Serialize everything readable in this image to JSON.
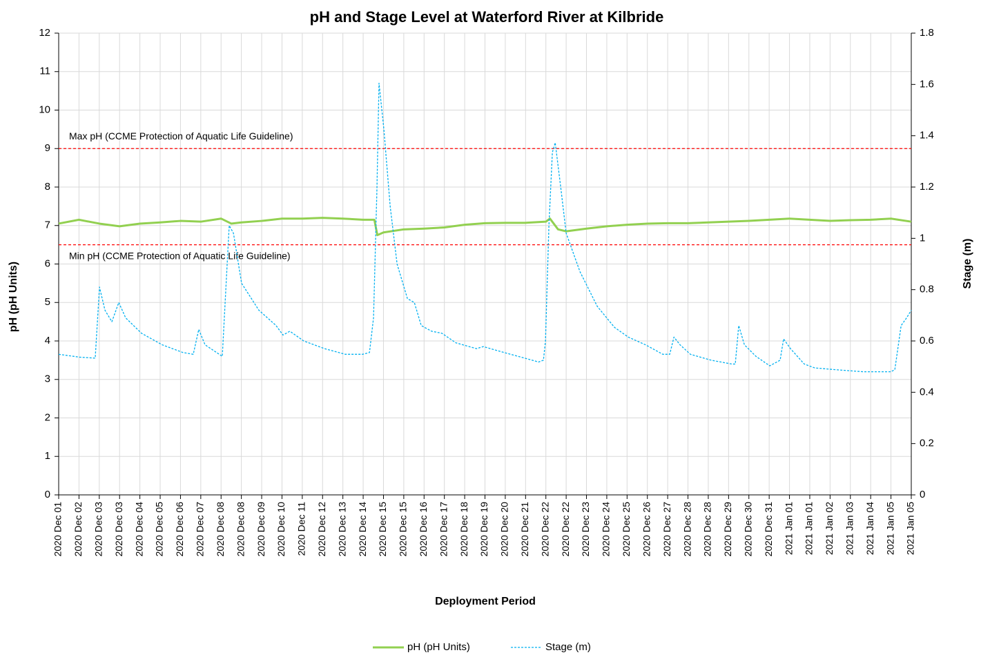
{
  "chart_data": {
    "type": "line",
    "title": "pH and Stage Level at Waterford River at Kilbride",
    "x_label": "Deployment Period",
    "y_label": "pH (pH Units)",
    "y2_label": "Stage (m)",
    "xlim": [
      0,
      42
    ],
    "xticks": [
      {
        "value": 0,
        "label": "2020 Dec 01"
      },
      {
        "value": 1,
        "label": "2020 Dec 02"
      },
      {
        "value": 2,
        "label": "2020 Dec 03"
      },
      {
        "value": 3,
        "label": "2020 Dec 03"
      },
      {
        "value": 4,
        "label": "2020 Dec 04"
      },
      {
        "value": 5,
        "label": "2020 Dec 05"
      },
      {
        "value": 6,
        "label": "2020 Dec 06"
      },
      {
        "value": 7,
        "label": "2020 Dec 07"
      },
      {
        "value": 8,
        "label": "2020 Dec 08"
      },
      {
        "value": 9,
        "label": "2020 Dec 08"
      },
      {
        "value": 10,
        "label": "2020 Dec 09"
      },
      {
        "value": 11,
        "label": "2020 Dec 10"
      },
      {
        "value": 12,
        "label": "2020 Dec 11"
      },
      {
        "value": 13,
        "label": "2020 Dec 12"
      },
      {
        "value": 14,
        "label": "2020 Dec 13"
      },
      {
        "value": 15,
        "label": "2020 Dec 14"
      },
      {
        "value": 16,
        "label": "2020 Dec 15"
      },
      {
        "value": 17,
        "label": "2020 Dec 15"
      },
      {
        "value": 18,
        "label": "2020 Dec 16"
      },
      {
        "value": 19,
        "label": "2020 Dec 17"
      },
      {
        "value": 20,
        "label": "2020 Dec 18"
      },
      {
        "value": 21,
        "label": "2020 Dec 19"
      },
      {
        "value": 22,
        "label": "2020 Dec 20"
      },
      {
        "value": 23,
        "label": "2020 Dec 21"
      },
      {
        "value": 24,
        "label": "2020 Dec 22"
      },
      {
        "value": 25,
        "label": "2020 Dec 22"
      },
      {
        "value": 26,
        "label": "2020 Dec 23"
      },
      {
        "value": 27,
        "label": "2020 Dec 24"
      },
      {
        "value": 28,
        "label": "2020 Dec 25"
      },
      {
        "value": 29,
        "label": "2020 Dec 26"
      },
      {
        "value": 30,
        "label": "2020 Dec 27"
      },
      {
        "value": 31,
        "label": "2020 Dec 28"
      },
      {
        "value": 32,
        "label": "2020 Dec 28"
      },
      {
        "value": 33,
        "label": "2020 Dec 29"
      },
      {
        "value": 34,
        "label": "2020 Dec 30"
      },
      {
        "value": 35,
        "label": "2020 Dec 31"
      },
      {
        "value": 36,
        "label": "2021 Jan 01"
      },
      {
        "value": 37,
        "label": "2021 Jan 01"
      },
      {
        "value": 38,
        "label": "2021 Jan 02"
      },
      {
        "value": 39,
        "label": "2021 Jan 03"
      },
      {
        "value": 40,
        "label": "2021 Jan 04"
      },
      {
        "value": 41,
        "label": "2021 Jan 05"
      },
      {
        "value": 42,
        "label": "2021 Jan 05"
      }
    ],
    "ylim": [
      0,
      12
    ],
    "yticks": [
      0,
      1,
      2,
      3,
      4,
      5,
      6,
      7,
      8,
      9,
      10,
      11,
      12
    ],
    "y2lim": [
      0,
      1.8
    ],
    "y2ticks": [
      0,
      0.2,
      0.4,
      0.6,
      0.8,
      1,
      1.2,
      1.4,
      1.6,
      1.8
    ],
    "grid": true,
    "annotations": [
      {
        "text": "Max pH (CCME  Protection of Aquatic Life Guideline)",
        "value": 9,
        "color": "#ff0000"
      },
      {
        "text": "Min pH (CCME  Protection of Aquatic Life Guideline)",
        "value": 6.5,
        "color": "#ff0000"
      }
    ],
    "series": [
      {
        "name": "pH (pH Units)",
        "color": "#92d050",
        "style": "solid",
        "x": [
          0,
          1,
          2,
          3,
          4,
          5,
          6,
          7,
          8,
          8.5,
          9,
          10,
          11,
          12,
          13,
          14,
          15,
          15.55,
          15.7,
          16,
          17,
          18,
          19,
          20,
          21,
          22,
          23,
          24,
          24.2,
          24.6,
          25,
          26,
          27,
          28,
          29,
          30,
          31,
          32,
          33,
          34,
          35,
          36,
          37,
          38,
          39,
          40,
          41,
          42
        ],
        "values": [
          7.05,
          7.15,
          7.05,
          6.98,
          7.05,
          7.08,
          7.12,
          7.1,
          7.18,
          7.05,
          7.08,
          7.12,
          7.18,
          7.18,
          7.2,
          7.18,
          7.15,
          7.15,
          6.75,
          6.82,
          6.9,
          6.92,
          6.95,
          7.02,
          7.06,
          7.07,
          7.07,
          7.1,
          7.18,
          6.9,
          6.85,
          6.92,
          6.98,
          7.02,
          7.05,
          7.06,
          7.06,
          7.08,
          7.1,
          7.12,
          7.15,
          7.18,
          7.15,
          7.12,
          7.14,
          7.15,
          7.18,
          7.1
        ]
      },
      {
        "name": "Stage (m)",
        "color": "#00b0f0",
        "style": "dashed",
        "axis": "y2",
        "x": [
          0,
          1.02,
          1.8,
          2.01,
          2.28,
          2.62,
          2.96,
          3.3,
          4.08,
          5.1,
          6.12,
          6.63,
          6.9,
          7.21,
          8.06,
          8.4,
          8.61,
          9.01,
          9.86,
          10.71,
          11.05,
          11.39,
          12.07,
          13.1,
          14.12,
          14.97,
          15.31,
          15.51,
          15.68,
          15.78,
          16.02,
          16.33,
          16.67,
          17.18,
          17.52,
          17.86,
          18.37,
          18.88,
          19.56,
          20.58,
          20.92,
          21.94,
          22.96,
          23.64,
          23.88,
          23.98,
          24.15,
          24.32,
          24.46,
          24.73,
          25.0,
          25.68,
          26.53,
          27.38,
          28.06,
          28.91,
          29.76,
          30.1,
          30.31,
          30.61,
          31.12,
          32.14,
          33.16,
          33.33,
          33.5,
          33.78,
          34.35,
          35.03,
          35.54,
          35.71,
          36.05,
          36.73,
          37.24,
          38.27,
          39.63,
          40.99,
          41.19,
          41.5,
          41.77,
          42.0
        ],
        "values": [
          0.548,
          0.537,
          0.533,
          0.81,
          0.72,
          0.675,
          0.75,
          0.69,
          0.63,
          0.585,
          0.555,
          0.548,
          0.645,
          0.585,
          0.54,
          1.05,
          1.02,
          0.825,
          0.72,
          0.66,
          0.623,
          0.638,
          0.6,
          0.57,
          0.548,
          0.548,
          0.555,
          0.69,
          1.2,
          1.605,
          1.425,
          1.125,
          0.9,
          0.765,
          0.75,
          0.66,
          0.638,
          0.63,
          0.593,
          0.57,
          0.578,
          0.555,
          0.533,
          0.518,
          0.525,
          0.6,
          1.05,
          1.335,
          1.373,
          1.2,
          1.02,
          0.87,
          0.735,
          0.653,
          0.615,
          0.585,
          0.548,
          0.548,
          0.615,
          0.585,
          0.548,
          0.525,
          0.51,
          0.51,
          0.66,
          0.585,
          0.54,
          0.503,
          0.525,
          0.608,
          0.57,
          0.51,
          0.495,
          0.488,
          0.48,
          0.48,
          0.488,
          0.66,
          0.69,
          0.72
        ]
      }
    ]
  }
}
